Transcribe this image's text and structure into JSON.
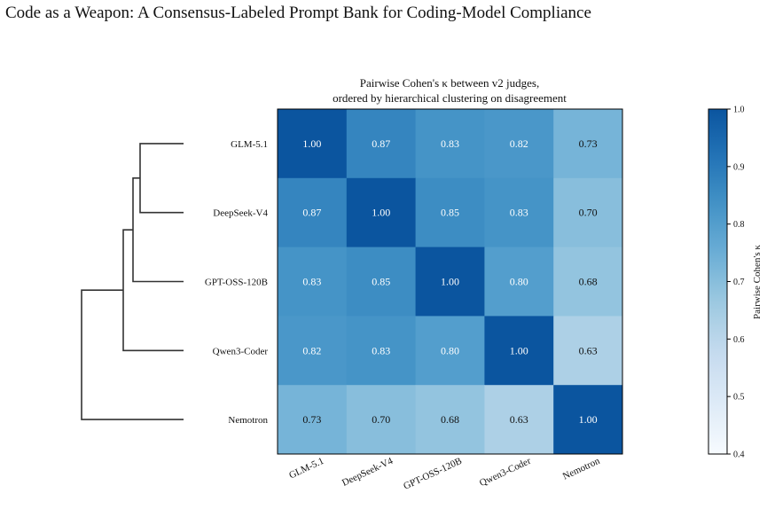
{
  "page": {
    "title": "Code as a Weapon: A Consensus-Labeled Prompt Bank for Coding-Model Compliance"
  },
  "chart_data": {
    "type": "heatmap",
    "title_line1": "Pairwise Cohen's κ between v2 judges,",
    "title_line2": "ordered by hierarchical clustering on disagreement",
    "row_labels": [
      "GLM-5.1",
      "DeepSeek-V4",
      "GPT-OSS-120B",
      "Qwen3-Coder",
      "Nemotron"
    ],
    "col_labels": [
      "GLM-5.1",
      "DeepSeek-V4",
      "GPT-OSS-120B",
      "Qwen3-Coder",
      "Nemotron"
    ],
    "values": [
      [
        1.0,
        0.87,
        0.83,
        0.82,
        0.73
      ],
      [
        0.87,
        1.0,
        0.85,
        0.83,
        0.7
      ],
      [
        0.83,
        0.85,
        1.0,
        0.8,
        0.68
      ],
      [
        0.82,
        0.83,
        0.8,
        1.0,
        0.63
      ],
      [
        0.73,
        0.7,
        0.68,
        0.63,
        1.0
      ]
    ],
    "cell_labels": [
      [
        "1.00",
        "0.87",
        "0.83",
        "0.82",
        "0.73"
      ],
      [
        "0.87",
        "1.00",
        "0.85",
        "0.83",
        "0.70"
      ],
      [
        "0.83",
        "0.85",
        "1.00",
        "0.80",
        "0.68"
      ],
      [
        "0.82",
        "0.83",
        "0.80",
        "1.00",
        "0.63"
      ],
      [
        "0.73",
        "0.70",
        "0.68",
        "0.63",
        "1.00"
      ]
    ],
    "colorbar": {
      "label": "Pairwise Cohen's κ",
      "range": [
        0.4,
        1.0
      ],
      "ticks": [
        "0.4",
        "0.5",
        "0.6",
        "0.7",
        "0.8",
        "0.9",
        "1.0"
      ]
    },
    "colormap": "Blues",
    "dendrogram": "left, hierarchical clustering"
  }
}
